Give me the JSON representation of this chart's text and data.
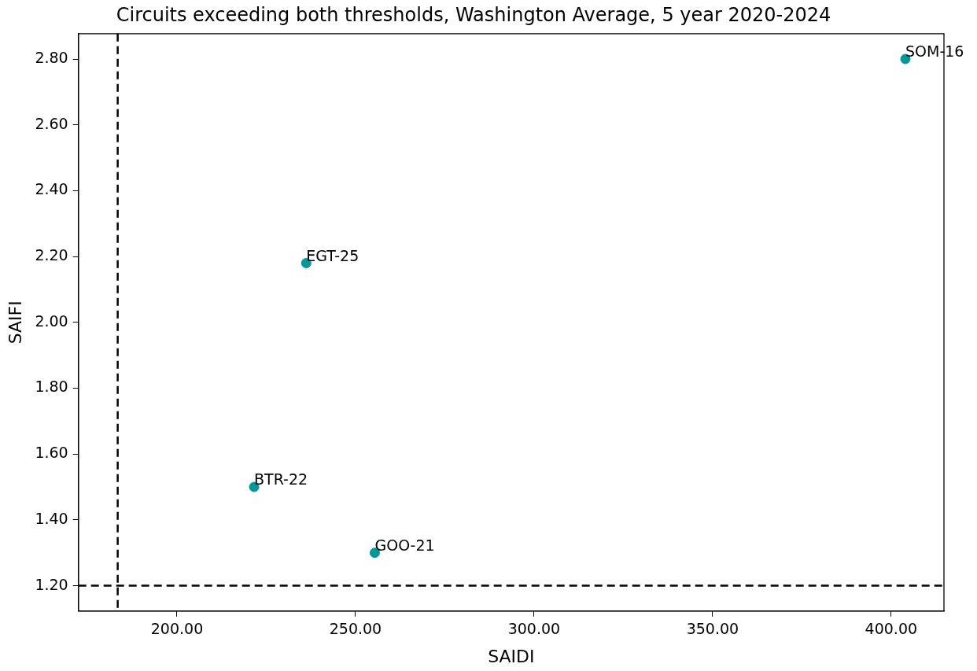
{
  "chart_data": {
    "type": "scatter",
    "title": "Circuits exceeding both thresholds, Washington Average, 5 year 2020-2024",
    "xlabel": "SAIDI",
    "ylabel": "SAIFI",
    "x": [
      404,
      236.2,
      221.6,
      255.4
    ],
    "series": [
      {
        "color": "#009999",
        "values": [
          2.8,
          2.18,
          1.5,
          1.3
        ]
      }
    ],
    "annotations": [
      {
        "text": "SOM-16",
        "x": 404,
        "y": 2.8
      },
      {
        "text": "EGT-25",
        "x": 236.2,
        "y": 2.18
      },
      {
        "text": "BTR-22",
        "x": 221.6,
        "y": 1.5
      },
      {
        "text": "GOO-21",
        "x": 255.4,
        "y": 1.3
      }
    ],
    "xlim": [
      172.4,
      414.8
    ],
    "ylim": [
      1.123,
      2.877
    ],
    "xticks": [
      {
        "value": 200,
        "label": "200.00"
      },
      {
        "value": 250,
        "label": "250.00"
      },
      {
        "value": 300,
        "label": "300.00"
      },
      {
        "value": 350,
        "label": "350.00"
      },
      {
        "value": 400,
        "label": "400.00"
      }
    ],
    "yticks": [
      {
        "value": 1.2,
        "label": "1.20"
      },
      {
        "value": 1.4,
        "label": "1.40"
      },
      {
        "value": 1.6,
        "label": "1.60"
      },
      {
        "value": 1.8,
        "label": "1.80"
      },
      {
        "value": 2.0,
        "label": "2.00"
      },
      {
        "value": 2.2,
        "label": "2.20"
      },
      {
        "value": 2.4,
        "label": "2.40"
      },
      {
        "value": 2.6,
        "label": "2.60"
      },
      {
        "value": 2.8,
        "label": "2.80"
      }
    ],
    "ref_lines": [
      {
        "axis": "x",
        "value": 183.4,
        "color": "#000000",
        "line_style": "dashed"
      },
      {
        "axis": "y",
        "value": 1.2,
        "color": "#000000",
        "line_style": "dashed"
      }
    ],
    "marker": "circle",
    "grid": false,
    "legend": false
  }
}
